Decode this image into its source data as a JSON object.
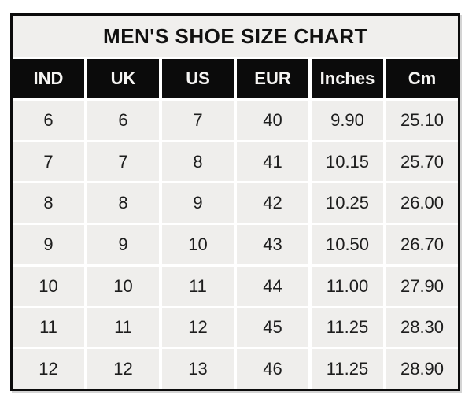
{
  "chart_data": {
    "type": "table",
    "title": "MEN'S SHOE SIZE CHART",
    "columns": [
      "IND",
      "UK",
      "US",
      "EUR",
      "Inches",
      "Cm"
    ],
    "rows": [
      [
        "6",
        "6",
        "7",
        "40",
        "9.90",
        "25.10"
      ],
      [
        "7",
        "7",
        "8",
        "41",
        "10.15",
        "25.70"
      ],
      [
        "8",
        "8",
        "9",
        "42",
        "10.25",
        "26.00"
      ],
      [
        "9",
        "9",
        "10",
        "43",
        "10.50",
        "26.70"
      ],
      [
        "10",
        "10",
        "11",
        "44",
        "11.00",
        "27.90"
      ],
      [
        "11",
        "11",
        "12",
        "45",
        "11.25",
        "28.30"
      ],
      [
        "12",
        "12",
        "13",
        "46",
        "11.25",
        "28.90"
      ]
    ],
    "layout": {
      "header_style": "black-on-white-text",
      "grid": "white-gridlines-between-gray-cells"
    }
  },
  "colors": {
    "outer_border": "#0b0b0b",
    "header_bg": "#0b0b0b",
    "header_text": "#f6f5f3",
    "cell_bg": "#efeeec",
    "title_bg": "#f0efed",
    "text": "#1d1d1d",
    "gridline": "#ffffff"
  }
}
